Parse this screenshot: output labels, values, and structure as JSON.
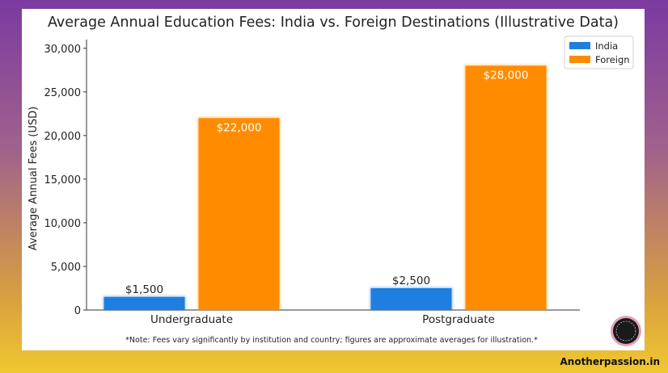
{
  "chart_data": {
    "type": "bar",
    "title": "Average Annual Education Fees: India vs. Foreign Destinations (Illustrative Data)",
    "xlabel": "",
    "ylabel": "Average Annual Fees (USD)",
    "categories": [
      "Undergraduate",
      "Postgraduate"
    ],
    "series": [
      {
        "name": "India",
        "color": "#1f7fe0",
        "values": [
          1500,
          2500
        ],
        "labels": [
          "$1,500",
          "$2,500"
        ]
      },
      {
        "name": "Foreign",
        "color": "#ff8c00",
        "values": [
          22000,
          28000
        ],
        "labels": [
          "$22,000",
          "$28,000"
        ]
      }
    ],
    "ylim": [
      0,
      31000
    ],
    "yticks": [
      0,
      5000,
      10000,
      15000,
      20000,
      25000,
      30000
    ],
    "ytick_labels": [
      "0",
      "5,000",
      "10,000",
      "15,000",
      "20,000",
      "25,000",
      "30,000"
    ],
    "legend": "top-right",
    "grid": false,
    "note": "*Note: Fees vary significantly by institution and country; figures are approximate averages for illustration.*"
  },
  "brand": {
    "site": "Anotherpassion.in"
  }
}
